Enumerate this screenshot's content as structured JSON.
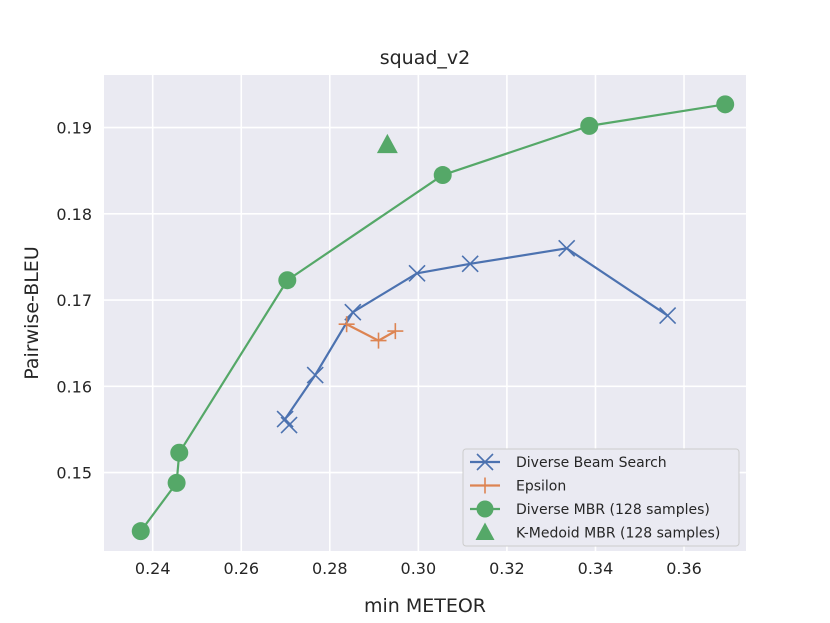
{
  "chart_data": {
    "type": "line",
    "title": "squad_v2",
    "xlabel": "min METEOR",
    "ylabel": "Pairwise-BLEU",
    "xlim": [
      0.229,
      0.374
    ],
    "ylim": [
      0.1409,
      0.1961
    ],
    "xticks": [
      0.24,
      0.26,
      0.28,
      0.3,
      0.32,
      0.34,
      0.36
    ],
    "xtick_labels": [
      "0.24",
      "0.26",
      "0.28",
      "0.30",
      "0.32",
      "0.34",
      "0.36"
    ],
    "yticks": [
      0.15,
      0.16,
      0.17,
      0.18,
      0.19
    ],
    "ytick_labels": [
      "0.15",
      "0.16",
      "0.17",
      "0.18",
      "0.19"
    ],
    "grid": true,
    "legend_position": "lower-right",
    "series": [
      {
        "name": "Diverse Beam Search",
        "color": "#4c72b0",
        "marker": "x",
        "x": [
          0.2708,
          0.2699,
          0.2767,
          0.2852,
          0.2997,
          0.3117,
          0.3335,
          0.3563
        ],
        "y": [
          0.1555,
          0.1562,
          0.1613,
          0.1686,
          0.1731,
          0.1742,
          0.176,
          0.1682
        ]
      },
      {
        "name": "Epsilon",
        "color": "#dd8452",
        "marker": "+",
        "x": [
          0.2838,
          0.291,
          0.2948
        ],
        "y": [
          0.1672,
          0.1653,
          0.1664
        ]
      },
      {
        "name": "Diverse MBR (128 samples)",
        "color": "#55a868",
        "marker": "o",
        "x": [
          0.2373,
          0.2454,
          0.246,
          0.2704,
          0.3055,
          0.3386,
          0.3693
        ],
        "y": [
          0.1432,
          0.1488,
          0.1523,
          0.1723,
          0.1845,
          0.1902,
          0.1927
        ]
      },
      {
        "name": "K-Medoid MBR (128 samples)",
        "color": "#55a868",
        "marker": "^",
        "line": false,
        "x": [
          0.293
        ],
        "y": [
          0.188
        ]
      }
    ]
  }
}
